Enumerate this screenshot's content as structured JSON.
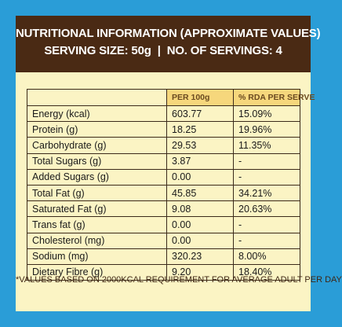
{
  "header": {
    "title": "NUTRITIONAL INFORMATION (APPROXIMATE VALUES)",
    "serving_size": "SERVING SIZE: 50g",
    "separator": "|",
    "servings": "NO. OF SERVINGS: 4"
  },
  "columns": {
    "per_100g": "PER 100g",
    "rda": "% RDA PER SERVE"
  },
  "rows": [
    {
      "nutrient": "Energy (kcal)",
      "per_100g": "603.77",
      "rda": "15.09%"
    },
    {
      "nutrient": "Protein (g)",
      "per_100g": "18.25",
      "rda": "19.96%"
    },
    {
      "nutrient": "Carbohydrate (g)",
      "per_100g": "29.53",
      "rda": "11.35%"
    },
    {
      "nutrient": "Total Sugars (g)",
      "per_100g": "3.87",
      "rda": "-"
    },
    {
      "nutrient": "Added Sugars (g)",
      "per_100g": "0.00",
      "rda": "-"
    },
    {
      "nutrient": "Total Fat (g)",
      "per_100g": "45.85",
      "rda": "34.21%"
    },
    {
      "nutrient": "Saturated Fat (g)",
      "per_100g": "9.08",
      "rda": "20.63%"
    },
    {
      "nutrient": "Trans fat (g)",
      "per_100g": "0.00",
      "rda": "-"
    },
    {
      "nutrient": "Cholesterol (mg)",
      "per_100g": "0.00",
      "rda": "-"
    },
    {
      "nutrient": "Sodium (mg)",
      "per_100g": "320.23",
      "rda": "8.00%"
    },
    {
      "nutrient": "Dietary Fibre (g)",
      "per_100g": "9.20",
      "rda": "18.40%"
    }
  ],
  "footnote": "*VALUES BASED ON 2000KCAL REQUIREMENT FOR AVERAGE ADULT PER DAY",
  "colors": {
    "background": "#2a9dd7",
    "header": "#4a2a14",
    "panel": "#fbf4c4",
    "column_header": "#f6d77c"
  }
}
